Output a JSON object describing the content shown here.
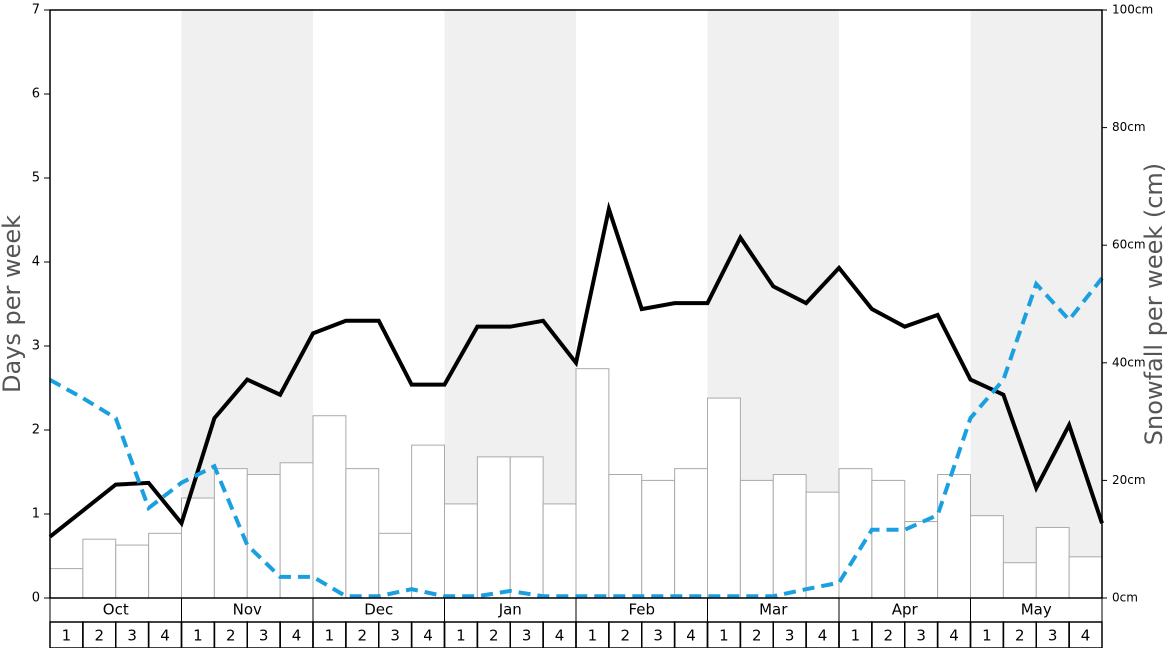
{
  "chart_data": {
    "type": "bar-line",
    "y_label": "Days per week",
    "y2_label": "Snowfall per week (cm)",
    "months": [
      "Oct",
      "Nov",
      "Dec",
      "Jan",
      "Feb",
      "Mar",
      "Apr",
      "May"
    ],
    "weeks": [
      "1",
      "2",
      "3",
      "4",
      "1",
      "2",
      "3",
      "4",
      "1",
      "2",
      "3",
      "4",
      "1",
      "2",
      "3",
      "4",
      "1",
      "2",
      "3",
      "4",
      "1",
      "2",
      "3",
      "4",
      "1",
      "2",
      "3",
      "4",
      "1",
      "2",
      "3",
      "4"
    ],
    "x": [
      0,
      1,
      2,
      3,
      4,
      5,
      6,
      7,
      8,
      9,
      10,
      11,
      12,
      13,
      14,
      15,
      16,
      17,
      18,
      19,
      20,
      21,
      22,
      23,
      24,
      25,
      26,
      27,
      28,
      29,
      30,
      31,
      32
    ],
    "xlim": [
      0,
      32
    ],
    "ylim": [
      0,
      7
    ],
    "yticks": [
      0,
      1,
      2,
      3,
      4,
      5,
      6,
      7
    ],
    "y2lim": [
      0,
      100
    ],
    "y2ticks": [
      {
        "value": 0,
        "label": "0cm"
      },
      {
        "value": 20,
        "label": "20cm"
      },
      {
        "value": 40,
        "label": "40cm"
      },
      {
        "value": 60,
        "label": "60cm"
      },
      {
        "value": 80,
        "label": "80cm"
      },
      {
        "value": 100,
        "label": "100cm"
      }
    ],
    "bars": {
      "color": "#ffffff",
      "edge": "#aaaaaa",
      "values": [
        0.35,
        0.7,
        0.63,
        0.77,
        1.19,
        1.54,
        1.47,
        1.61,
        2.17,
        1.54,
        0.77,
        1.82,
        1.12,
        1.68,
        1.68,
        1.12,
        2.73,
        1.47,
        1.4,
        1.54,
        2.38,
        1.4,
        1.47,
        1.26,
        1.54,
        1.4,
        0.91,
        1.47,
        0.98,
        0.42,
        0.84,
        0.49
      ]
    },
    "series": [
      {
        "color": "#000000",
        "style": "solid",
        "axis": "y",
        "values": [
          0.73,
          1.04,
          1.35,
          1.37,
          0.89,
          2.14,
          2.6,
          2.42,
          3.15,
          3.3,
          3.3,
          2.54,
          2.54,
          3.23,
          3.23,
          3.3,
          2.8,
          4.63,
          3.44,
          3.51,
          3.51,
          4.29,
          3.71,
          3.51,
          3.93,
          3.44,
          3.23,
          3.37,
          2.6,
          2.42,
          1.31,
          2.06,
          0.89
        ]
      },
      {
        "color": "#1aa0e0",
        "style": "dashed",
        "axis": "y2",
        "values": [
          37.1,
          34,
          30.6,
          15.3,
          19.6,
          22.4,
          9,
          3.6,
          3.6,
          0.3,
          0.3,
          1.5,
          0.3,
          0.3,
          1.2,
          0.3,
          0.3,
          0.3,
          0.3,
          0.3,
          0.3,
          0.3,
          0.3,
          1.5,
          2.6,
          11.6,
          11.6,
          14.1,
          30.6,
          37.1,
          53.4,
          47.3,
          54.4
        ]
      }
    ],
    "shade_color": "#f0f0f0"
  }
}
